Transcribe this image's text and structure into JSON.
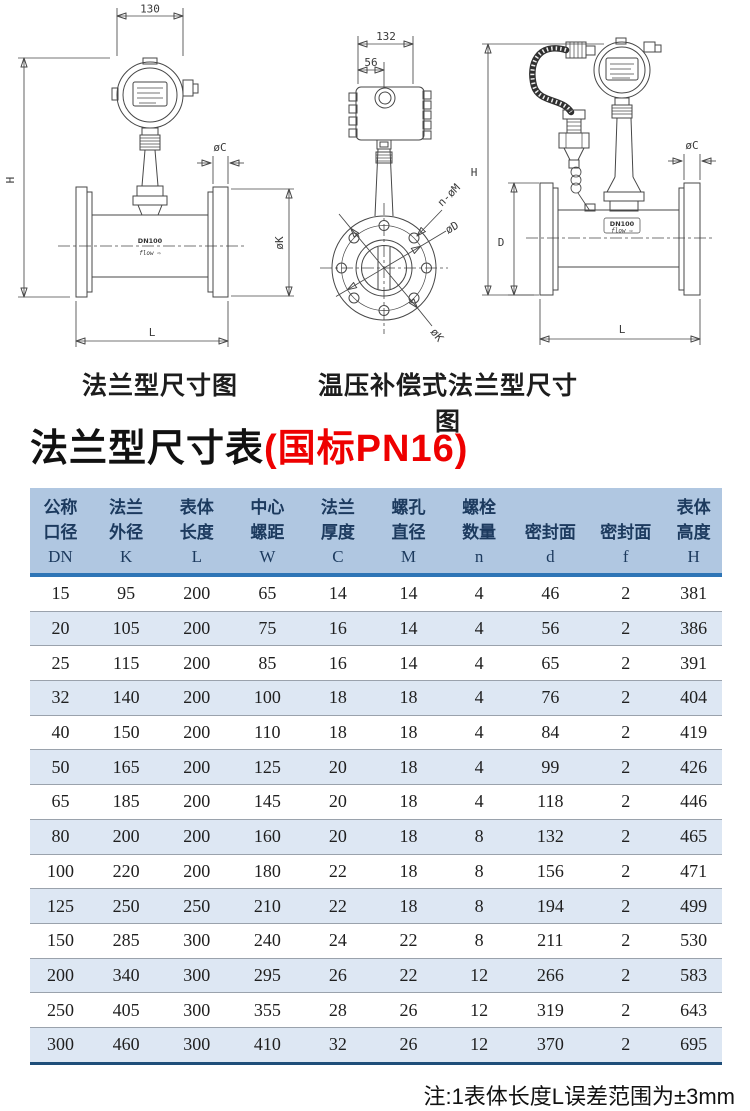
{
  "page": {
    "title_black": "法兰型尺寸表",
    "title_red": "(国标PN16)",
    "note": "注:1表体长度L误差范围为±3mm"
  },
  "diagrams": {
    "left": {
      "caption": "法兰型尺寸图",
      "dim_width": "130",
      "dim_height": "H",
      "dim_flange_thickness": "øC",
      "dim_flange_outer": "øK",
      "dim_length": "L",
      "pipe_label": "DN100",
      "flow_label": "flow ⇨"
    },
    "middle": {
      "dim_width": "132",
      "dim_offset": "56",
      "label_bolt_holes": "n-øM",
      "label_bolt_circle": "øD",
      "label_outer": "øK"
    },
    "right": {
      "caption": "温压补偿式法兰型尺寸图",
      "dim_height": "H",
      "dim_flange_od": "D",
      "dim_flange_thickness": "øC",
      "dim_length": "L",
      "pipe_label": "DN100",
      "flow_label": "flow ⇨"
    }
  },
  "table": {
    "columns": [
      {
        "cn": [
          "公称",
          "口径"
        ],
        "letter": "DN"
      },
      {
        "cn": [
          "法兰",
          "外径"
        ],
        "letter": "K"
      },
      {
        "cn": [
          "表体",
          "长度"
        ],
        "letter": "L"
      },
      {
        "cn": [
          "中心",
          "螺距"
        ],
        "letter": "W"
      },
      {
        "cn": [
          "法兰",
          "厚度"
        ],
        "letter": "C"
      },
      {
        "cn": [
          "螺孔",
          "直径"
        ],
        "letter": "M"
      },
      {
        "cn": [
          "螺栓",
          "数量"
        ],
        "letter": "n"
      },
      {
        "cn": [
          "密封面"
        ],
        "letter": "d"
      },
      {
        "cn": [
          "密封面"
        ],
        "letter": "f"
      },
      {
        "cn": [
          "表体",
          "高度"
        ],
        "letter": "H"
      }
    ],
    "rows": [
      [
        15,
        95,
        200,
        65,
        14,
        14,
        4,
        46,
        2,
        381
      ],
      [
        20,
        105,
        200,
        75,
        16,
        14,
        4,
        56,
        2,
        386
      ],
      [
        25,
        115,
        200,
        85,
        16,
        14,
        4,
        65,
        2,
        391
      ],
      [
        32,
        140,
        200,
        100,
        18,
        18,
        4,
        76,
        2,
        404
      ],
      [
        40,
        150,
        200,
        110,
        18,
        18,
        4,
        84,
        2,
        419
      ],
      [
        50,
        165,
        200,
        125,
        20,
        18,
        4,
        99,
        2,
        426
      ],
      [
        65,
        185,
        200,
        145,
        20,
        18,
        4,
        118,
        2,
        446
      ],
      [
        80,
        200,
        200,
        160,
        20,
        18,
        8,
        132,
        2,
        465
      ],
      [
        100,
        220,
        200,
        180,
        22,
        18,
        8,
        156,
        2,
        471
      ],
      [
        125,
        250,
        250,
        210,
        22,
        18,
        8,
        194,
        2,
        499
      ],
      [
        150,
        285,
        300,
        240,
        24,
        22,
        8,
        211,
        2,
        530
      ],
      [
        200,
        340,
        300,
        295,
        26,
        22,
        12,
        266,
        2,
        583
      ],
      [
        250,
        405,
        300,
        355,
        28,
        26,
        12,
        319,
        2,
        643
      ],
      [
        300,
        460,
        300,
        410,
        32,
        26,
        12,
        370,
        2,
        695
      ]
    ]
  },
  "colors": {
    "header_bg": "#b0c7e1",
    "header_text": "#1c3a5e",
    "header_underline": "#2e75b6",
    "row_alt_bg": "#dde7f3",
    "row_separator": "#9aa2ac",
    "table_bottom_line": "#1f4e79",
    "title_red": "#ee0000",
    "drawing_stroke": "#474747"
  }
}
